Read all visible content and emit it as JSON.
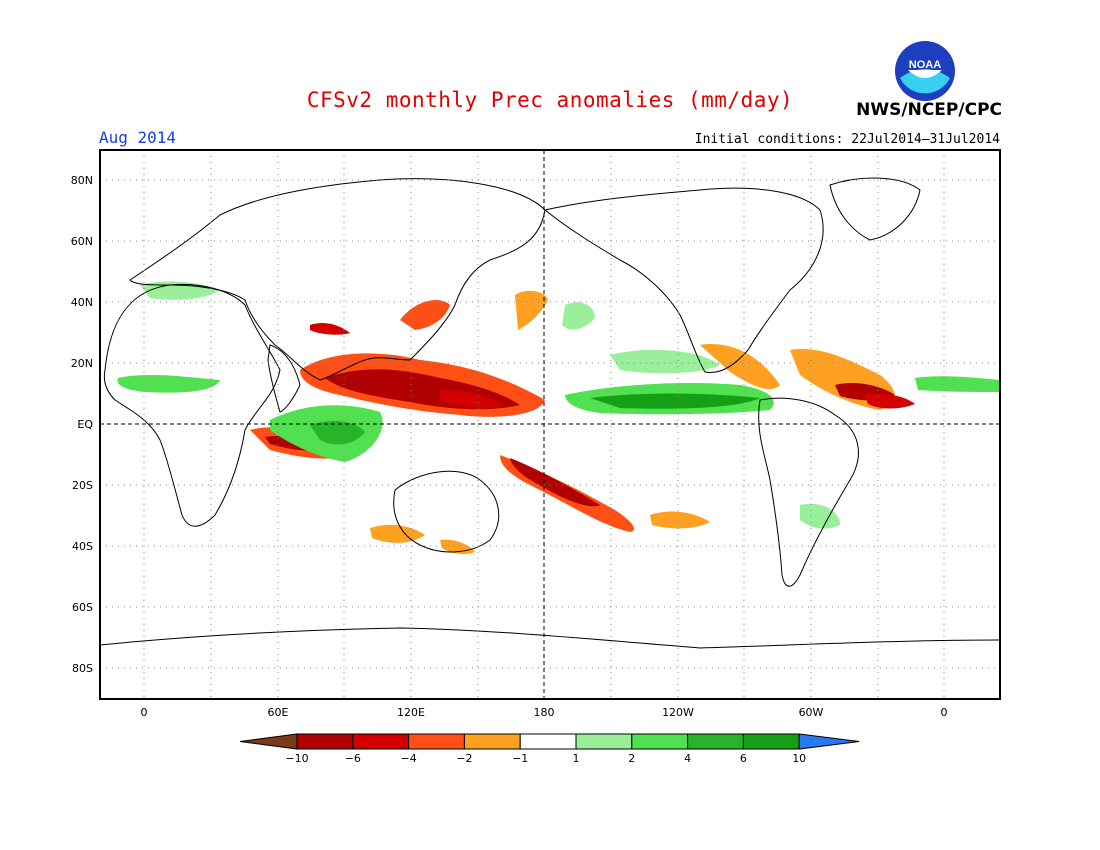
{
  "header": {
    "title": "CFSv2 monthly Prec anomalies (mm/day)",
    "agency": "NWS/NCEP/CPC",
    "logo_text": "NOAA",
    "month": "Aug 2014",
    "initial_conditions": "Initial conditions: 22Jul2014–31Jul2014"
  },
  "map": {
    "lat_ticks": [
      "80N",
      "60N",
      "40N",
      "20N",
      "EQ",
      "20S",
      "40S",
      "60S",
      "80S"
    ],
    "lon_ticks": [
      "0",
      "60E",
      "120E",
      "180",
      "120W",
      "60W",
      "0"
    ],
    "grid": "dotted"
  },
  "colorbar": {
    "labels": [
      "−10",
      "−6",
      "−4",
      "−2",
      "−1",
      "1",
      "2",
      "4",
      "6",
      "10"
    ],
    "colors": [
      "#7b3a1a",
      "#b00000",
      "#d40000",
      "#ff4f14",
      "#ffa020",
      "#ffffff",
      "#9af09a",
      "#50e050",
      "#28b428",
      "#14a014",
      "#2878f0"
    ]
  }
}
